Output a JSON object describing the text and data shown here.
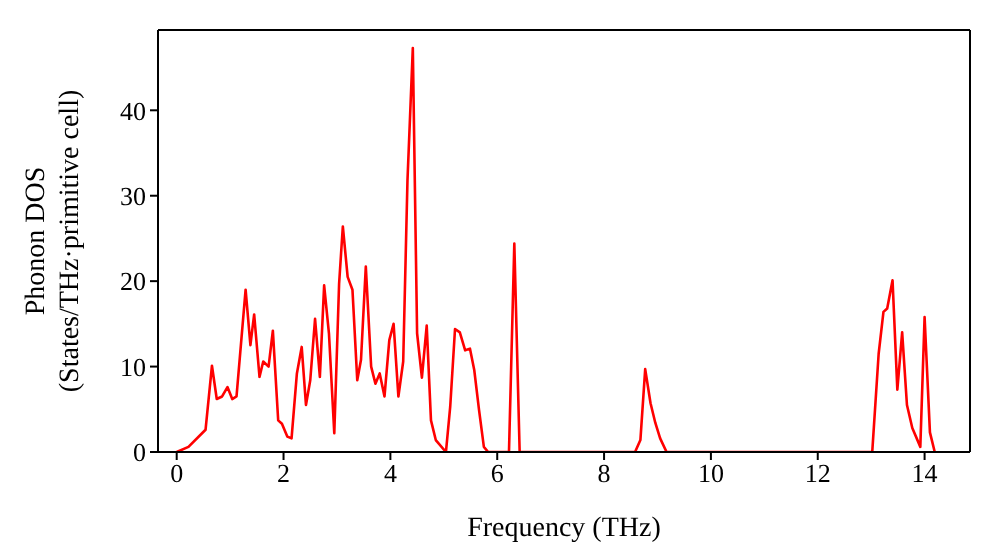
{
  "chart_data": {
    "type": "line",
    "xlabel": "Frequency (THz)",
    "ylabel": "Phonon DOS\n(States/THz·primitive cell)",
    "x": [
      0,
      0.22,
      0.54,
      0.66,
      0.75,
      0.85,
      0.95,
      1.04,
      1.12,
      1.29,
      1.38,
      1.45,
      1.55,
      1.62,
      1.72,
      1.8,
      1.9,
      1.97,
      2.07,
      2.15,
      2.25,
      2.34,
      2.42,
      2.5,
      2.59,
      2.68,
      2.76,
      2.85,
      2.95,
      3.04,
      3.11,
      3.2,
      3.29,
      3.38,
      3.45,
      3.54,
      3.64,
      3.72,
      3.8,
      3.89,
      3.98,
      4.06,
      4.15,
      4.24,
      4.32,
      4.42,
      4.5,
      4.59,
      4.68,
      4.76,
      4.85,
      5.04,
      5.12,
      5.21,
      5.3,
      5.4,
      5.49,
      5.57,
      5.66,
      5.75,
      5.83,
      6.22,
      6.32,
      6.42,
      8.58,
      8.68,
      8.77,
      8.87,
      8.96,
      9.05,
      9.17,
      13.02,
      13.14,
      13.23,
      13.3,
      13.4,
      13.49,
      13.58,
      13.67,
      13.77,
      13.92,
      14.0,
      14.1,
      14.19
    ],
    "series": [
      {
        "color": "#ff0000",
        "values": [
          0,
          0.6,
          2.6,
          10.1,
          6.2,
          6.5,
          7.6,
          6.2,
          6.5,
          19,
          12.5,
          16.1,
          8.8,
          10.6,
          10,
          14.2,
          3.7,
          3.3,
          1.8,
          1.6,
          9.2,
          12.3,
          5.5,
          8.4,
          15.6,
          8.8,
          19.5,
          13.9,
          2.2,
          19.7,
          26.4,
          20.5,
          19,
          8.4,
          10.8,
          21.7,
          10,
          8,
          9.2,
          6.5,
          13.1,
          15,
          6.5,
          10.6,
          31.8,
          47.3,
          13.9,
          8.7,
          14.8,
          3.7,
          1.4,
          0,
          5.3,
          14.4,
          14,
          11.9,
          12.1,
          9.6,
          4.9,
          0.6,
          0,
          0,
          24.4,
          0,
          0,
          1.4,
          9.7,
          5.7,
          3.4,
          1.6,
          0,
          0,
          11.5,
          16.4,
          16.8,
          20.1,
          7.3,
          14,
          5.5,
          2.8,
          0.6,
          15.8,
          2.3,
          0
        ]
      }
    ],
    "xlim": [
      -0.35,
      14.85
    ],
    "ylim": [
      0,
      49.4
    ],
    "xticks": [
      0,
      2,
      4,
      6,
      8,
      10,
      12,
      14
    ],
    "yticks": [
      0,
      10,
      20,
      30,
      40
    ],
    "legend": false,
    "marker": "none",
    "line_style": "solid"
  }
}
